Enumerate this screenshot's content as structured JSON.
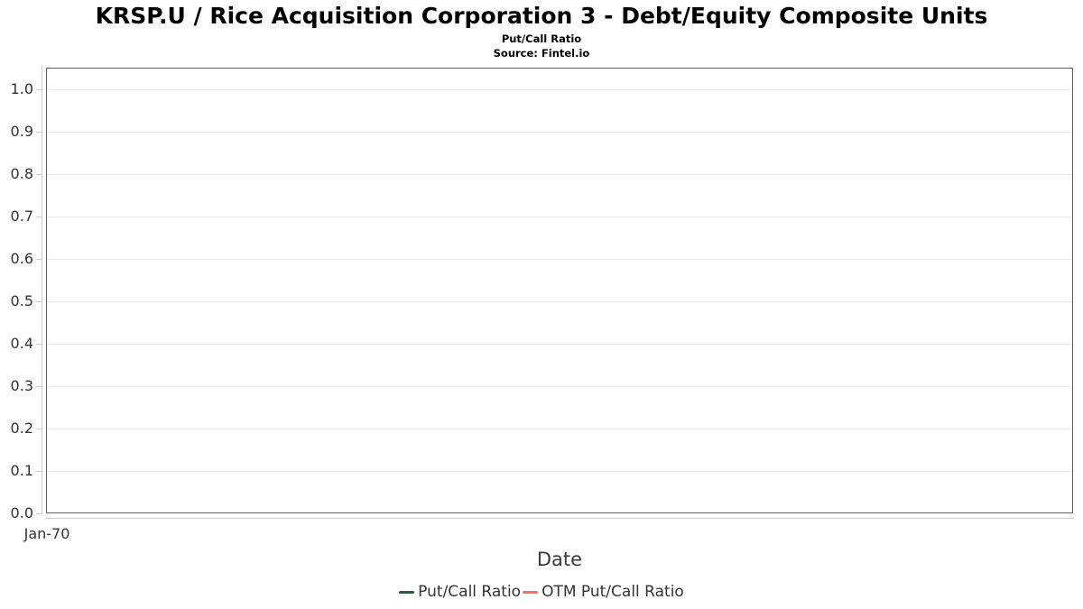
{
  "chart_data": {
    "type": "line",
    "title": "KRSP.U / Rice Acquisition Corporation 3 - Debt/Equity Composite Units",
    "subtitle": "Put/Call Ratio",
    "source": "Source: Fintel.io",
    "xlabel": "Date",
    "ylabel": "",
    "ylim": [
      0.0,
      1.05
    ],
    "yticks": [
      0.0,
      0.1,
      0.2,
      0.3,
      0.4,
      0.5,
      0.6,
      0.7,
      0.8,
      0.9,
      1.0
    ],
    "ytick_labels": [
      "0.0",
      "0.1",
      "0.2",
      "0.3",
      "0.4",
      "0.5",
      "0.6",
      "0.7",
      "0.8",
      "0.9",
      "1.0"
    ],
    "xtick_labels": [
      "Jan-70"
    ],
    "grid": true,
    "legend_position": "bottom",
    "plot_empty": true,
    "series": [
      {
        "name": "Put/Call Ratio",
        "color": "#265c3a",
        "x": [],
        "values": []
      },
      {
        "name": "OTM Put/Call Ratio",
        "color": "#f96d6a",
        "x": [],
        "values": []
      }
    ],
    "colors": {
      "background": "#ffffff",
      "plot_border": "#616161",
      "axis_line": "#cccccc",
      "gridline": "#e6e6e6",
      "tick_text": "#333333",
      "title_text": "#000000"
    }
  }
}
